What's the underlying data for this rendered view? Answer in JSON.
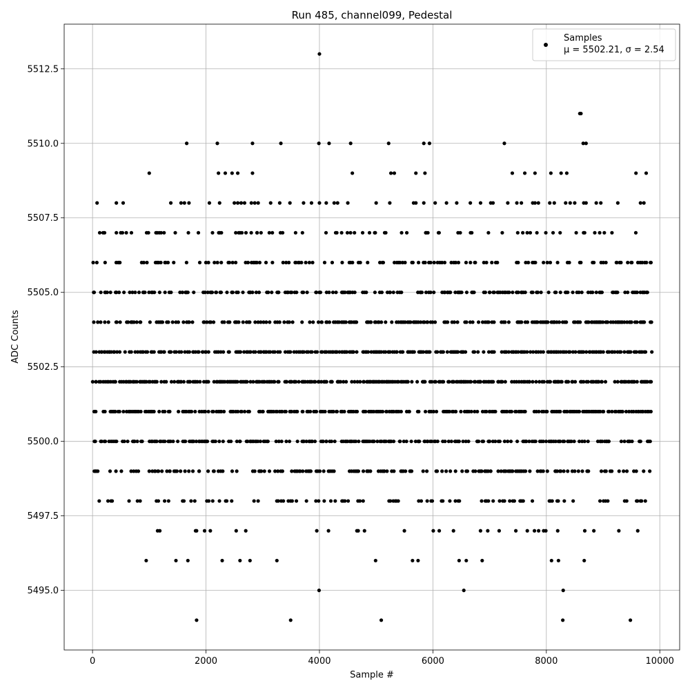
{
  "chart_data": {
    "type": "scatter",
    "title": "Run 485, channel099, Pedestal",
    "xlabel": "Sample #",
    "ylabel": "ADC Counts",
    "xlim": [
      -500,
      10350
    ],
    "ylim": [
      5493,
      5514
    ],
    "xticks": [
      0,
      2000,
      4000,
      6000,
      8000,
      10000
    ],
    "xtick_labels": [
      "0",
      "2000",
      "4000",
      "6000",
      "8000",
      "10000"
    ],
    "yticks": [
      5495.0,
      5497.5,
      5500.0,
      5502.5,
      5505.0,
      5507.5,
      5510.0,
      5512.5
    ],
    "ytick_labels": [
      "5495.0",
      "5497.5",
      "5500.0",
      "5502.5",
      "5505.0",
      "5507.5",
      "5510.0",
      "5512.5"
    ],
    "grid": true,
    "legend_position": "top-right",
    "marker_color": "#000000",
    "series": [
      {
        "name": "Samples",
        "stats_label": "μ = 5502.21, σ = 2.54",
        "x_range": [
          0,
          9840
        ],
        "dense_levels": [
          5494,
          5495,
          5496,
          5497,
          5498,
          5499,
          5500,
          5501,
          5502,
          5503,
          5504,
          5505,
          5506,
          5507
        ],
        "level_density": [
          0.004,
          0.008,
          0.03,
          0.07,
          0.17,
          0.32,
          0.45,
          0.55,
          0.6,
          0.55,
          0.45,
          0.36,
          0.24,
          0.14
        ],
        "outliers": [
          [
            80,
            5508
          ],
          [
            420,
            5508
          ],
          [
            540,
            5508
          ],
          [
            1380,
            5508
          ],
          [
            1560,
            5508
          ],
          [
            1620,
            5508
          ],
          [
            1700,
            5508
          ],
          [
            2060,
            5508
          ],
          [
            2240,
            5508
          ],
          [
            2500,
            5508
          ],
          [
            2560,
            5508
          ],
          [
            2620,
            5508
          ],
          [
            2680,
            5508
          ],
          [
            2800,
            5508
          ],
          [
            2860,
            5508
          ],
          [
            2920,
            5508
          ],
          [
            3140,
            5508
          ],
          [
            3300,
            5508
          ],
          [
            3480,
            5508
          ],
          [
            3720,
            5508
          ],
          [
            3860,
            5508
          ],
          [
            4000,
            5508
          ],
          [
            4120,
            5508
          ],
          [
            4260,
            5508
          ],
          [
            4320,
            5508
          ],
          [
            4500,
            5508
          ],
          [
            5000,
            5508
          ],
          [
            5240,
            5508
          ],
          [
            5660,
            5508
          ],
          [
            5700,
            5508
          ],
          [
            5840,
            5508
          ],
          [
            6040,
            5508
          ],
          [
            6240,
            5508
          ],
          [
            6420,
            5508
          ],
          [
            6660,
            5508
          ],
          [
            6840,
            5508
          ],
          [
            7020,
            5508
          ],
          [
            7060,
            5508
          ],
          [
            7320,
            5508
          ],
          [
            7480,
            5508
          ],
          [
            7560,
            5508
          ],
          [
            7760,
            5508
          ],
          [
            7800,
            5508
          ],
          [
            7860,
            5508
          ],
          [
            8060,
            5508
          ],
          [
            8140,
            5508
          ],
          [
            8340,
            5508
          ],
          [
            8420,
            5508
          ],
          [
            8500,
            5508
          ],
          [
            8660,
            5508
          ],
          [
            8700,
            5508
          ],
          [
            8880,
            5508
          ],
          [
            8960,
            5508
          ],
          [
            9260,
            5508
          ],
          [
            9660,
            5508
          ],
          [
            9720,
            5508
          ],
          [
            1000,
            5509
          ],
          [
            2220,
            5509
          ],
          [
            2340,
            5509
          ],
          [
            2460,
            5509
          ],
          [
            2560,
            5509
          ],
          [
            2820,
            5509
          ],
          [
            4580,
            5509
          ],
          [
            5260,
            5509
          ],
          [
            5320,
            5509
          ],
          [
            5700,
            5509
          ],
          [
            5860,
            5509
          ],
          [
            7400,
            5509
          ],
          [
            7620,
            5509
          ],
          [
            7800,
            5509
          ],
          [
            8080,
            5509
          ],
          [
            8260,
            5509
          ],
          [
            8360,
            5509
          ],
          [
            9580,
            5509
          ],
          [
            9760,
            5509
          ],
          [
            1660,
            5510
          ],
          [
            2200,
            5510
          ],
          [
            2820,
            5510
          ],
          [
            3320,
            5510
          ],
          [
            3990,
            5510
          ],
          [
            4170,
            5510
          ],
          [
            4550,
            5510
          ],
          [
            5220,
            5510
          ],
          [
            5840,
            5510
          ],
          [
            5940,
            5510
          ],
          [
            7260,
            5510
          ],
          [
            8650,
            5510
          ],
          [
            8700,
            5510
          ],
          [
            8590,
            5511
          ],
          [
            8610,
            5511
          ],
          [
            4000,
            5513
          ]
        ]
      }
    ]
  }
}
